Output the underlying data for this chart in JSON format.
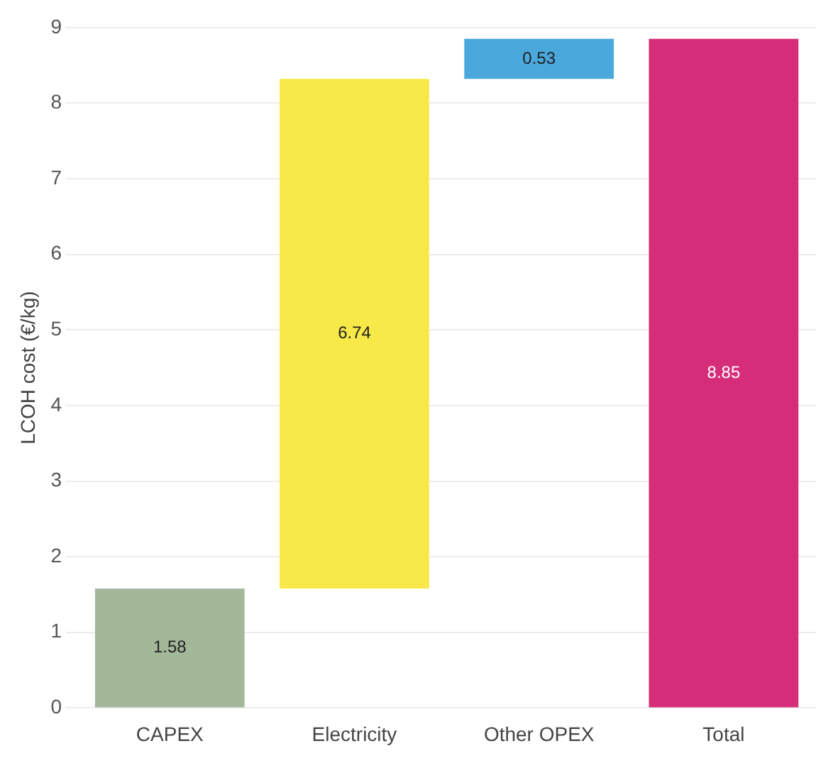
{
  "chart_data": {
    "type": "bar",
    "ylabel": "LCOH cost (€/kg)",
    "categories": [
      "CAPEX",
      "Electricity",
      "Other OPEX",
      "Total"
    ],
    "values": [
      1.58,
      6.74,
      0.53,
      8.85
    ],
    "base": [
      0,
      1.58,
      8.32,
      0
    ],
    "colors": [
      "#a3b899",
      "#f7ea48",
      "#4aa8dc",
      "#d62d7a"
    ],
    "ylim": [
      0,
      9
    ],
    "yticks": [
      0,
      1,
      2,
      3,
      4,
      5,
      6,
      7,
      8,
      9
    ],
    "grid": "y",
    "data_labels": true
  }
}
